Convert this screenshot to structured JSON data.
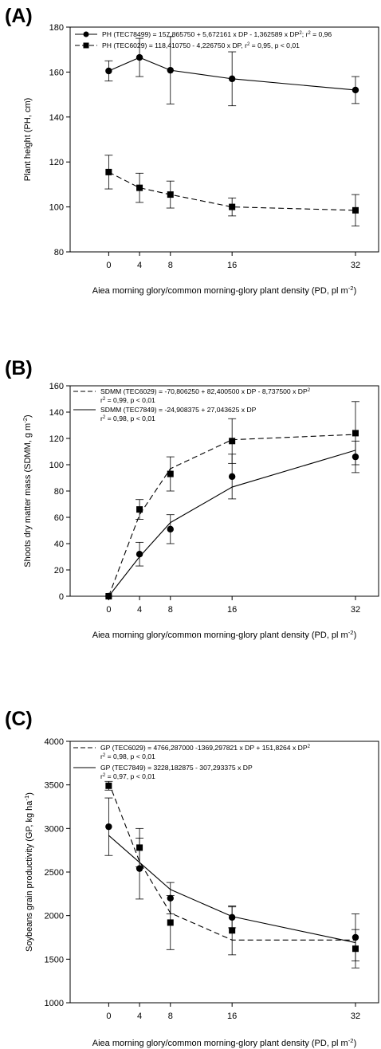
{
  "chart_data": [
    {
      "panel_label": "(A)",
      "type": "line",
      "ylabel": "Plant height (PH, cm)",
      "xlabel_main": "Aiea morning glory/common morning-glory plant density (PD, pl m",
      "xlabel_sup": "-2",
      "xlabel_end": ")",
      "ylim": [
        80,
        180
      ],
      "yticks": [
        "80",
        "100",
        "120",
        "140",
        "160",
        "180"
      ],
      "xlim": [
        -5,
        35
      ],
      "xticks": [
        "0",
        "4",
        "8",
        "16",
        "32"
      ],
      "legend_position": "top",
      "series": [
        {
          "name": "PH (TEC78499) = 157,865750 + 5,672161 x DP - 1,362589 x DP²; r² = 0,96",
          "legend_parts": [
            "PH (TEC78499) = 157,865750 + 5,672161 x DP - 1,362589 x DP",
            "2",
            "; r",
            "2",
            " = 0,96"
          ],
          "marker": "circle",
          "line": "solid",
          "x": [
            0,
            4,
            8,
            16,
            32
          ],
          "y": [
            160.5,
            166.5,
            160.8,
            157,
            152
          ],
          "err": [
            4.5,
            8.5,
            15,
            12,
            6
          ],
          "fit": "points"
        },
        {
          "name": "PH (TEC6029) = 118,410750 - 4,226750 x DP, r² = 0,95, p < 0,01",
          "legend_parts": [
            "PH (TEC6029) = 118,410750 - 4,226750 x DP, r",
            "2",
            " = 0,95, p < 0,01"
          ],
          "marker": "square",
          "line": "dashed",
          "x": [
            0,
            4,
            8,
            16,
            32
          ],
          "y": [
            115.5,
            108.5,
            105.5,
            100,
            98.5
          ],
          "err": [
            7.5,
            6.5,
            6,
            4,
            7
          ],
          "fit": "points"
        }
      ]
    },
    {
      "panel_label": "(B)",
      "type": "scatter",
      "ylabel_main": "Shoots dry matter mass (SDMM, g m",
      "ylabel_sup": "-2",
      "ylabel_end": ")",
      "xlabel_main": "Aiea morning glory/common morning-glory plant density (PD, pl m",
      "xlabel_sup": "-2",
      "xlabel_end": ")",
      "ylim": [
        0,
        160
      ],
      "yticks": [
        "0",
        "20",
        "40",
        "60",
        "80",
        "100",
        "120",
        "140",
        "160"
      ],
      "xlim": [
        -5,
        35
      ],
      "xticks": [
        "0",
        "4",
        "8",
        "16",
        "32"
      ],
      "legend_position": "top",
      "series": [
        {
          "name": "SDMM (TEC6029) = -70,806250 + 82,400500 x DP - 8,737500 x DP² r² = 0,99, p < 0,01",
          "legend_parts": [
            "SDMM (TEC6029) = -70,806250 + 82,400500 x DP - 8,737500 x DP",
            "2"
          ],
          "legend_line2": [
            "r",
            "2",
            " = 0,99, p < 0,01"
          ],
          "marker": "square",
          "line": "dashed",
          "x": [
            0,
            4,
            8,
            16,
            32
          ],
          "y": [
            0,
            66,
            93,
            118,
            124
          ],
          "err": [
            0,
            7.5,
            13,
            17,
            24
          ],
          "fit_x": [
            0,
            4,
            8,
            16,
            32
          ],
          "fit_y": [
            0,
            62,
            97,
            119,
            123
          ]
        },
        {
          "name": "SDMM (TEC7849) = -24,908375 + 27,043625 x DP r² = 0,98, p < 0,01",
          "legend_parts": [
            "SDMM (TEC7849) = -24,908375 + 27,043625 x DP"
          ],
          "legend_line2": [
            "r",
            "2",
            " = 0,98, p < 0,01"
          ],
          "marker": "circle",
          "line": "solid",
          "x": [
            0,
            4,
            8,
            16,
            32
          ],
          "y": [
            0,
            32,
            51,
            91,
            106
          ],
          "err": [
            0,
            9,
            11,
            17,
            12
          ],
          "fit_x": [
            0,
            4,
            8,
            16,
            32
          ],
          "fit_y": [
            0,
            30,
            56,
            83,
            111
          ]
        }
      ]
    },
    {
      "panel_label": "(C)",
      "type": "scatter",
      "ylabel_main": "Soybeans grain productivity (GP, kg ha",
      "ylabel_sup": "-1",
      "ylabel_end": ")",
      "xlabel_main": "Aiea morning glory/common morning-glory plant density (PD, pl m",
      "xlabel_sup": "-2",
      "xlabel_end": ")",
      "ylim": [
        1000,
        4000
      ],
      "yticks": [
        "1000",
        "1500",
        "2000",
        "2500",
        "3000",
        "3500",
        "4000"
      ],
      "xlim": [
        -5,
        35
      ],
      "xticks": [
        "0",
        "4",
        "8",
        "16",
        "32"
      ],
      "legend_position": "top",
      "series": [
        {
          "name": "GP (TEC6029) = 4766,287000 -1369,297821 x DP + 151,8264 x DP² r² = 0,98, p < 0,01",
          "legend_parts": [
            "GP (TEC6029) = 4766,287000 -1369,297821 x DP + 151,8264 x DP",
            "2"
          ],
          "legend_line2": [
            "r",
            "2",
            " = 0,98, p < 0,01"
          ],
          "marker": "square",
          "line": "dashed",
          "x": [
            0,
            4,
            8,
            16,
            32
          ],
          "y": [
            3490,
            2780,
            1920,
            1830,
            1620
          ],
          "err": [
            50,
            220,
            310,
            280,
            220
          ],
          "fit_x": [
            0,
            4,
            8,
            16,
            32
          ],
          "fit_y": [
            3530,
            2620,
            2030,
            1720,
            1720
          ]
        },
        {
          "name": "GP (TEC7849) = 3228,182875 - 307,293375 x DP r² = 0,97, p < 0,01",
          "legend_parts": [
            "GP (TEC7849) = 3228,182875 - 307,293375 x DP"
          ],
          "legend_line2": [
            "r",
            "2",
            " = 0,97, p < 0,01"
          ],
          "marker": "circle",
          "line": "solid",
          "x": [
            0,
            4,
            8,
            16,
            32
          ],
          "y": [
            3020,
            2540,
            2200,
            1980,
            1750
          ],
          "err": [
            330,
            350,
            180,
            120,
            270
          ],
          "fit_x": [
            0,
            4,
            8,
            16,
            32
          ],
          "fit_y": [
            2920,
            2610,
            2300,
            1990,
            1690
          ]
        }
      ]
    }
  ]
}
